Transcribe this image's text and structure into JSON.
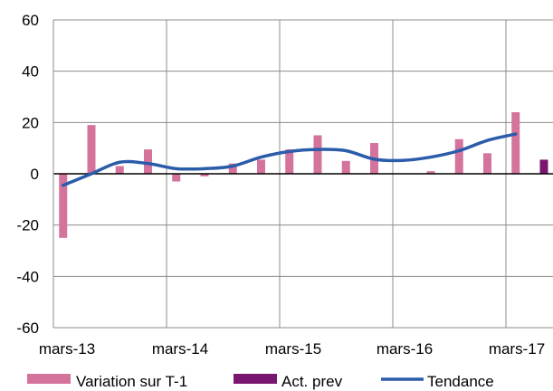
{
  "chart_data": {
    "type": "bar",
    "x_ticks": [
      "mars-13",
      "mars-14",
      "mars-15",
      "mars-16",
      "mars-17"
    ],
    "y_ticks": [
      60,
      40,
      20,
      0,
      -20,
      -40,
      -60
    ],
    "ylim": [
      -60,
      60
    ],
    "grid": true,
    "legend_position": "bottom",
    "series": [
      {
        "name": "Variation sur T-1",
        "type": "bar",
        "color": "#d4739b",
        "values": [
          -25,
          19,
          3,
          9.5,
          -3,
          -1,
          4,
          5.5,
          9.5,
          15,
          5,
          12,
          0,
          1,
          13.5,
          8,
          24
        ]
      },
      {
        "name": "Act. prev",
        "type": "bar",
        "color": "#7b1670",
        "values": [
          null,
          null,
          null,
          null,
          null,
          null,
          null,
          null,
          null,
          null,
          null,
          null,
          null,
          null,
          null,
          null,
          null,
          5.5
        ]
      },
      {
        "name": "Tendance",
        "type": "line",
        "color": "#2a5caa",
        "values": [
          -4.5,
          0,
          4.5,
          4,
          2,
          2,
          3,
          6.5,
          8.7,
          9.5,
          9,
          5.7,
          5.2,
          6.5,
          9,
          13,
          15.5
        ]
      }
    ]
  }
}
